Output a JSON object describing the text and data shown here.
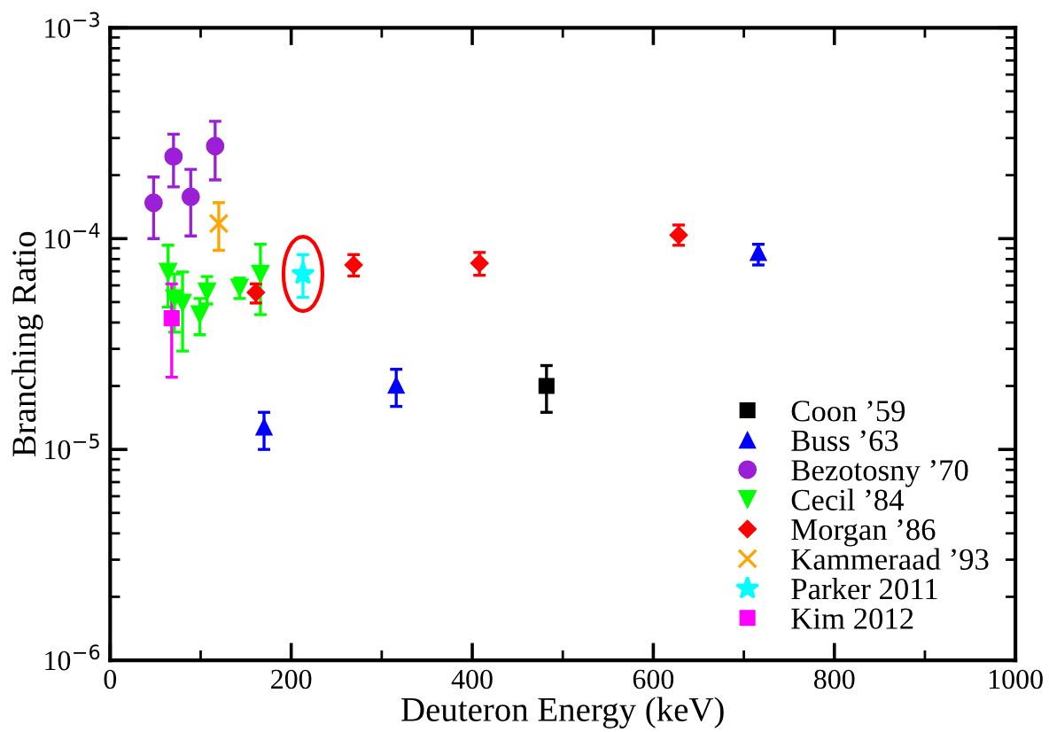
{
  "chart_data": {
    "type": "scatter",
    "xlabel": "Deuteron Energy (keV)",
    "ylabel": "Branching Ratio",
    "xlim": [
      0,
      1000
    ],
    "xticks": [
      0,
      200,
      400,
      600,
      800,
      1000
    ],
    "ylim": [
      1e-06,
      0.001
    ],
    "yticks": [
      {
        "value": 1e-06,
        "label": "10$^{−6}$"
      },
      {
        "value": 1e-05,
        "label": "10$^{−5}$"
      },
      {
        "value": 0.0001,
        "label": "10$^{−4}$"
      },
      {
        "value": 0.001,
        "label": "10$^{−3}$"
      }
    ],
    "log": "y",
    "grid": false,
    "legend": "bottom right",
    "series": [
      {
        "name": "Coon ’59",
        "color": "#000000",
        "marker": "square",
        "x": [
          482
        ],
        "values": [
          2e-05
        ],
        "errors": [
          [
            1.5e-05,
            2.5e-05
          ]
        ]
      },
      {
        "name": "Buss ’63",
        "color": "#0000ff",
        "marker": "triangle",
        "x": [
          170,
          316,
          716
        ],
        "values": [
          1.28e-05,
          2.02e-05,
          8.6e-05
        ],
        "errors": [
          [
            1e-05,
            1.5e-05
          ],
          [
            1.6e-05,
            2.4e-05
          ],
          [
            7.5e-05,
            9.4e-05
          ]
        ]
      },
      {
        "name": "Bezotosny ’70",
        "color": "#9a1fd6",
        "marker": "circle",
        "x": [
          48,
          70,
          89,
          116
        ],
        "values": [
          0.000148,
          0.000245,
          0.000158,
          0.000275
        ],
        "errors": [
          [
            0.0001,
            0.000196
          ],
          [
            0.000176,
            0.000313
          ],
          [
            0.000103,
            0.000213
          ],
          [
            0.00019,
            0.00036
          ]
        ]
      },
      {
        "name": "Cecil ’84",
        "color": "#00ff00",
        "marker": "triangle_down",
        "x": [
          64,
          71,
          80,
          99,
          107,
          143,
          166
        ],
        "values": [
          6.95e-05,
          5.2e-05,
          4.95e-05,
          4.36e-05,
          5.6e-05,
          5.85e-05,
          6.8e-05
        ],
        "errors": [
          [
            4.73e-05,
            9.3e-05
          ],
          [
            3.6e-05,
            6.8e-05
          ],
          [
            2.93e-05,
            6.95e-05
          ],
          [
            3.5e-05,
            5.2e-05
          ],
          [
            4.9e-05,
            6.6e-05
          ],
          [
            5.2e-05,
            6.5e-05
          ],
          [
            4.36e-05,
            9.4e-05
          ]
        ]
      },
      {
        "name": "Morgan ’86",
        "color": "#ff0000",
        "marker": "diamond",
        "x": [
          161,
          269,
          408,
          628
        ],
        "values": [
          5.55e-05,
          7.5e-05,
          7.65e-05,
          0.000104
        ],
        "errors": [
          [
            4.95e-05,
            6.1e-05
          ],
          [
            6.65e-05,
            8.4e-05
          ],
          [
            6.7e-05,
            8.6e-05
          ],
          [
            9.3e-05,
            0.000116
          ]
        ]
      },
      {
        "name": "Kammeraad ’93",
        "color": "#ffa500",
        "marker": "cross",
        "x": [
          120
        ],
        "values": [
          0.000118
        ],
        "errors": [
          [
            8.8e-05,
            0.000148
          ]
        ]
      },
      {
        "name": "Parker 2011",
        "color": "#00ffff",
        "marker": "star",
        "x": [
          213
        ],
        "values": [
          6.8e-05
        ],
        "errors": [
          [
            5.27e-05,
            8.4e-05
          ]
        ]
      },
      {
        "name": "Kim 2012",
        "color": "#ff00ff",
        "marker": "square",
        "x": [
          68
        ],
        "values": [
          4.19e-05
        ],
        "errors": [
          [
            2.2e-05,
            6.1e-05
          ]
        ]
      }
    ]
  }
}
